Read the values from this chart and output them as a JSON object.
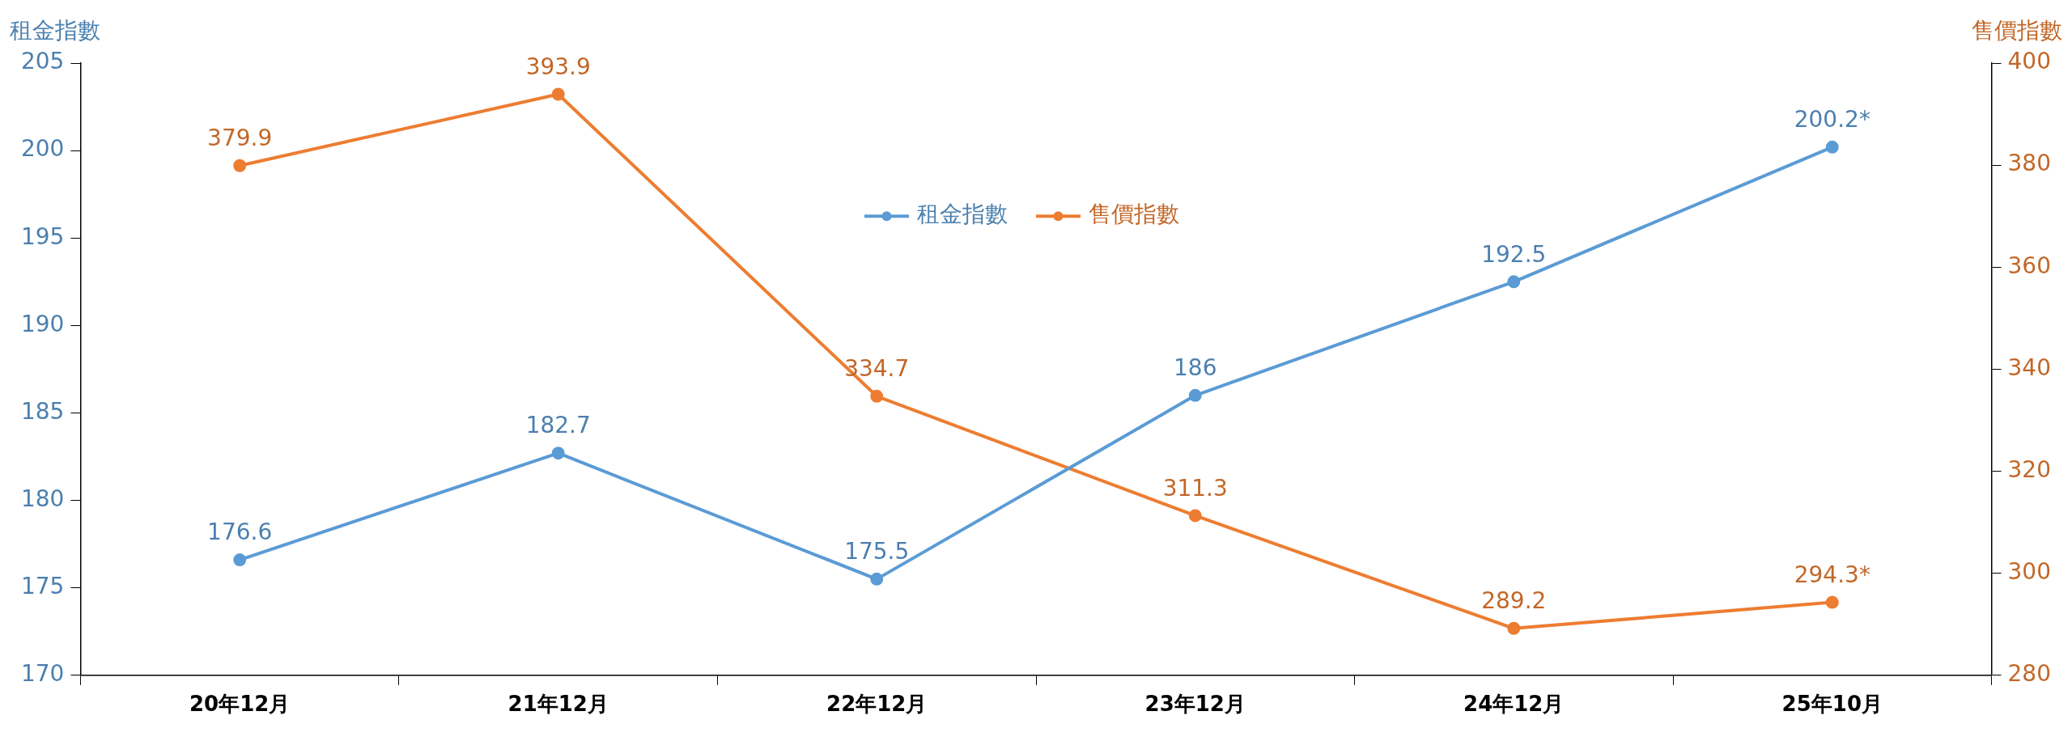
{
  "chart_data": {
    "type": "line",
    "ylabel": "租金指數",
    "y2label": "售價指數",
    "categories": [
      "20年12月",
      "21年12月",
      "22年12月",
      "23年12月",
      "24年12月",
      "25年10月"
    ],
    "series": [
      {
        "name": "租金指數",
        "color": "#5b9bd5",
        "values": [
          176.6,
          182.7,
          175.5,
          186,
          192.5,
          200.2
        ],
        "value_labels": [
          "176.6",
          "182.7",
          "175.5",
          "186",
          "192.5",
          "200.2*"
        ]
      },
      {
        "name": "售價指數",
        "color": "#ed7d31",
        "axis": "y2",
        "values": [
          379.9,
          393.9,
          334.7,
          311.3,
          289.2,
          294.3
        ],
        "value_labels": [
          "379.9",
          "393.9",
          "334.7",
          "311.3",
          "289.2",
          "294.3*"
        ]
      }
    ],
    "ylim": [
      170,
      205
    ],
    "yticks": [
      170,
      175,
      180,
      185,
      190,
      195,
      200,
      205
    ],
    "y2lim": [
      280,
      400
    ],
    "y2ticks": [
      280,
      300,
      320,
      340,
      360,
      380,
      400
    ],
    "legend": "top",
    "marker": "circle",
    "line_style": "solid",
    "grid": false
  }
}
